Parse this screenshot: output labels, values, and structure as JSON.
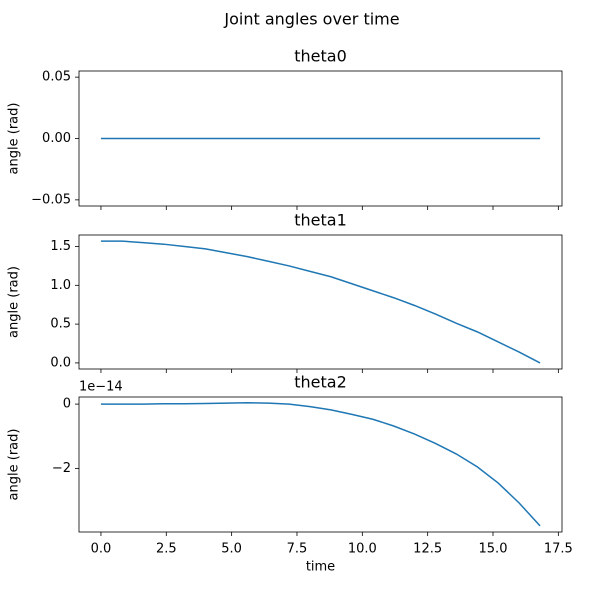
{
  "title": "Joint angles over time",
  "chart_data": [
    {
      "type": "line",
      "title": "theta0",
      "ylabel": "angle (rad)",
      "x": [
        0,
        0.8,
        1.6,
        2.4,
        3.2,
        4,
        4.8,
        5.6,
        6.4,
        7.2,
        8,
        8.8,
        9.6,
        10.4,
        11.2,
        12,
        12.8,
        13.6,
        14.4,
        15.2,
        16,
        16.8
      ],
      "series": [
        {
          "name": "theta0",
          "color": "#1f77b4",
          "values": [
            0,
            0,
            0,
            0,
            0,
            0,
            0,
            0,
            0,
            0,
            0,
            0,
            0,
            0,
            0,
            0,
            0,
            0,
            0,
            0,
            0,
            0
          ]
        }
      ],
      "xlim": [
        -0.84,
        17.64
      ],
      "ylim": [
        -0.055,
        0.055
      ],
      "yticks": [
        {
          "value": -0.05,
          "label": "−0.05"
        },
        {
          "value": 0,
          "label": "0.00"
        },
        0.05
      ]
    },
    {
      "type": "line",
      "title": "theta1",
      "ylabel": "angle (rad)",
      "x": [
        0,
        0.8,
        1.6,
        2.4,
        3.2,
        4,
        4.8,
        5.6,
        6.4,
        7.2,
        8,
        8.8,
        9.6,
        10.4,
        11.2,
        12,
        12.8,
        13.6,
        14.4,
        15.2,
        16,
        16.8
      ],
      "series": [
        {
          "name": "theta1",
          "color": "#1f77b4",
          "values": [
            1.57,
            1.57,
            1.55,
            1.53,
            1.5,
            1.47,
            1.42,
            1.37,
            1.31,
            1.25,
            1.18,
            1.11,
            1.02,
            0.93,
            0.84,
            0.74,
            0.63,
            0.51,
            0.4,
            0.27,
            0.14,
            0
          ]
        }
      ],
      "xlim": [
        -0.84,
        17.64
      ],
      "ylim": [
        -0.0785,
        1.6485
      ],
      "yticks": [
        {
          "value": 0,
          "label": "0.0"
        },
        0.5,
        {
          "value": 1,
          "label": "1.0"
        },
        1.5
      ]
    },
    {
      "type": "line",
      "title": "theta2",
      "ylabel": "angle (rad)",
      "xlabel": "time",
      "y_offset_label": "1e−14",
      "x": [
        0,
        0.8,
        1.6,
        2.4,
        3.2,
        4,
        4.8,
        5.6,
        6.4,
        7.2,
        8,
        8.8,
        9.6,
        10.4,
        11.2,
        12,
        12.8,
        13.6,
        14.4,
        15.2,
        16,
        16.8
      ],
      "series": [
        {
          "name": "theta2",
          "color": "#1f77b4",
          "values": [
            0,
            0,
            0,
            0.01,
            0.01,
            0.02,
            0.03,
            0.04,
            0.03,
            0,
            -0.08,
            -0.18,
            -0.32,
            -0.47,
            -0.68,
            -0.93,
            -1.22,
            -1.55,
            -1.95,
            -2.45,
            -3.07,
            -3.78
          ]
        }
      ],
      "xlim": [
        -0.84,
        17.64
      ],
      "ylim": [
        -3.97,
        0.22
      ],
      "yticks": [
        {
          "value": -2,
          "label": "−2"
        },
        0
      ],
      "xticks": [
        {
          "value": 0,
          "label": "0.0"
        },
        2.5,
        {
          "value": 5,
          "label": "5.0"
        },
        7.5,
        {
          "value": 10,
          "label": "10.0"
        },
        12.5,
        {
          "value": 15,
          "label": "15.0"
        },
        17.5
      ]
    }
  ]
}
